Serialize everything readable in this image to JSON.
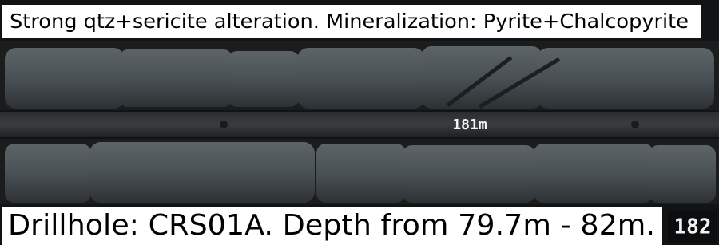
{
  "top_caption": "Strong qtz+sericite alteration. Mineralization: Pyrite+Chalcopyrite",
  "bottom_caption": "Drillhole: CRS01A. Depth from 79.7m - 82m.",
  "depth_marker": "181m",
  "box_marker": "182"
}
